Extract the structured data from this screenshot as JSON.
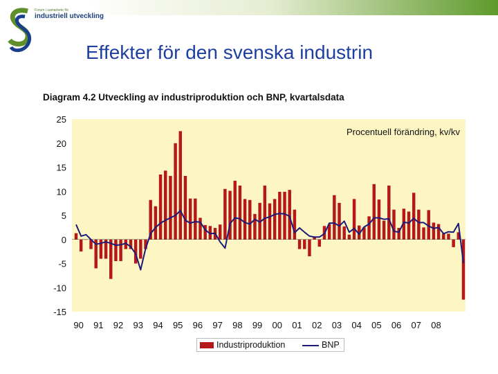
{
  "logo": {
    "small_text": "Forum i samarbete för",
    "name": "industriell utveckling"
  },
  "slide_title": "Effekter för den svenska industrin",
  "chart_data": {
    "type": "bar+line",
    "title": "Diagram 4.2 Utveckling av industriproduktion och BNP, kvartalsdata",
    "annotation": "Procentuell förändring, kv/kv",
    "xlabel": "",
    "ylabel": "",
    "ylim": [
      -15,
      25
    ],
    "yticks": [
      25,
      20,
      15,
      10,
      5,
      0,
      -5,
      -10,
      -15
    ],
    "year_labels": [
      "90",
      "91",
      "92",
      "93",
      "94",
      "95",
      "96",
      "97",
      "98",
      "99",
      "00",
      "01",
      "02",
      "03",
      "04",
      "05",
      "06",
      "07",
      "08"
    ],
    "grid": false,
    "legend_placement": "bottom",
    "background_color": "#fdf6c2",
    "series": [
      {
        "name": "Industriproduktion",
        "type": "bar",
        "color": "#b5181a",
        "values": [
          1.3,
          -2.5,
          0,
          -2,
          -6,
          -4,
          -4,
          -8.2,
          -4.5,
          -4.5,
          -2,
          -2,
          -5,
          -4,
          -2,
          8.2,
          6.9,
          13.5,
          14.3,
          13.2,
          20,
          22.5,
          13.2,
          8.5,
          8.5,
          4.5,
          3,
          2.8,
          2.4,
          3.1,
          10.5,
          10.1,
          12.2,
          11.2,
          8.4,
          8.2,
          5.3,
          7.6,
          11.2,
          7.5,
          8.4,
          9.9,
          9.9,
          10.3,
          6.2,
          -2,
          -2,
          -3.5,
          0.6,
          -1.5,
          2.8,
          3.2,
          9.2,
          7.6,
          2.7,
          1,
          8.4,
          2.9,
          2.5,
          4.8,
          11.5,
          8.3,
          3.9,
          11.2,
          6.2,
          2.4,
          6.4,
          5.8,
          9.7,
          6.2,
          2.5,
          6.1,
          3.5,
          3.2,
          1.2,
          1.2,
          -1.6,
          1.5,
          -12.5
        ]
      },
      {
        "name": "BNP",
        "type": "line",
        "color": "#1a1a7a",
        "values": [
          3.1,
          0.7,
          1,
          0,
          -1,
          -0.8,
          -0.5,
          -0.8,
          -1.2,
          -1.1,
          -0.8,
          -1.5,
          -3,
          -6.3,
          -1.9,
          1.2,
          2.5,
          3.4,
          4,
          4.5,
          5,
          6,
          4,
          3.4,
          3.7,
          3.6,
          2,
          1.2,
          1.3,
          -0.5,
          -1.8,
          3.3,
          4.5,
          4.3,
          3.5,
          3.2,
          4.2,
          3.6,
          4.4,
          4.7,
          5.2,
          5.4,
          5.3,
          4.8,
          1.4,
          2.4,
          1.5,
          0.7,
          0.5,
          0.5,
          1.2,
          3.4,
          3.4,
          2.8,
          3.8,
          1.5,
          2.3,
          1.1,
          2.6,
          3.2,
          4.5,
          4.5,
          4.2,
          4.3,
          1.7,
          1.5,
          3.6,
          3.4,
          4.4,
          3.5,
          3.5,
          2.8,
          2.3,
          2.5,
          1.2,
          1.6,
          1.5,
          3.3,
          -4.9
        ]
      }
    ]
  }
}
